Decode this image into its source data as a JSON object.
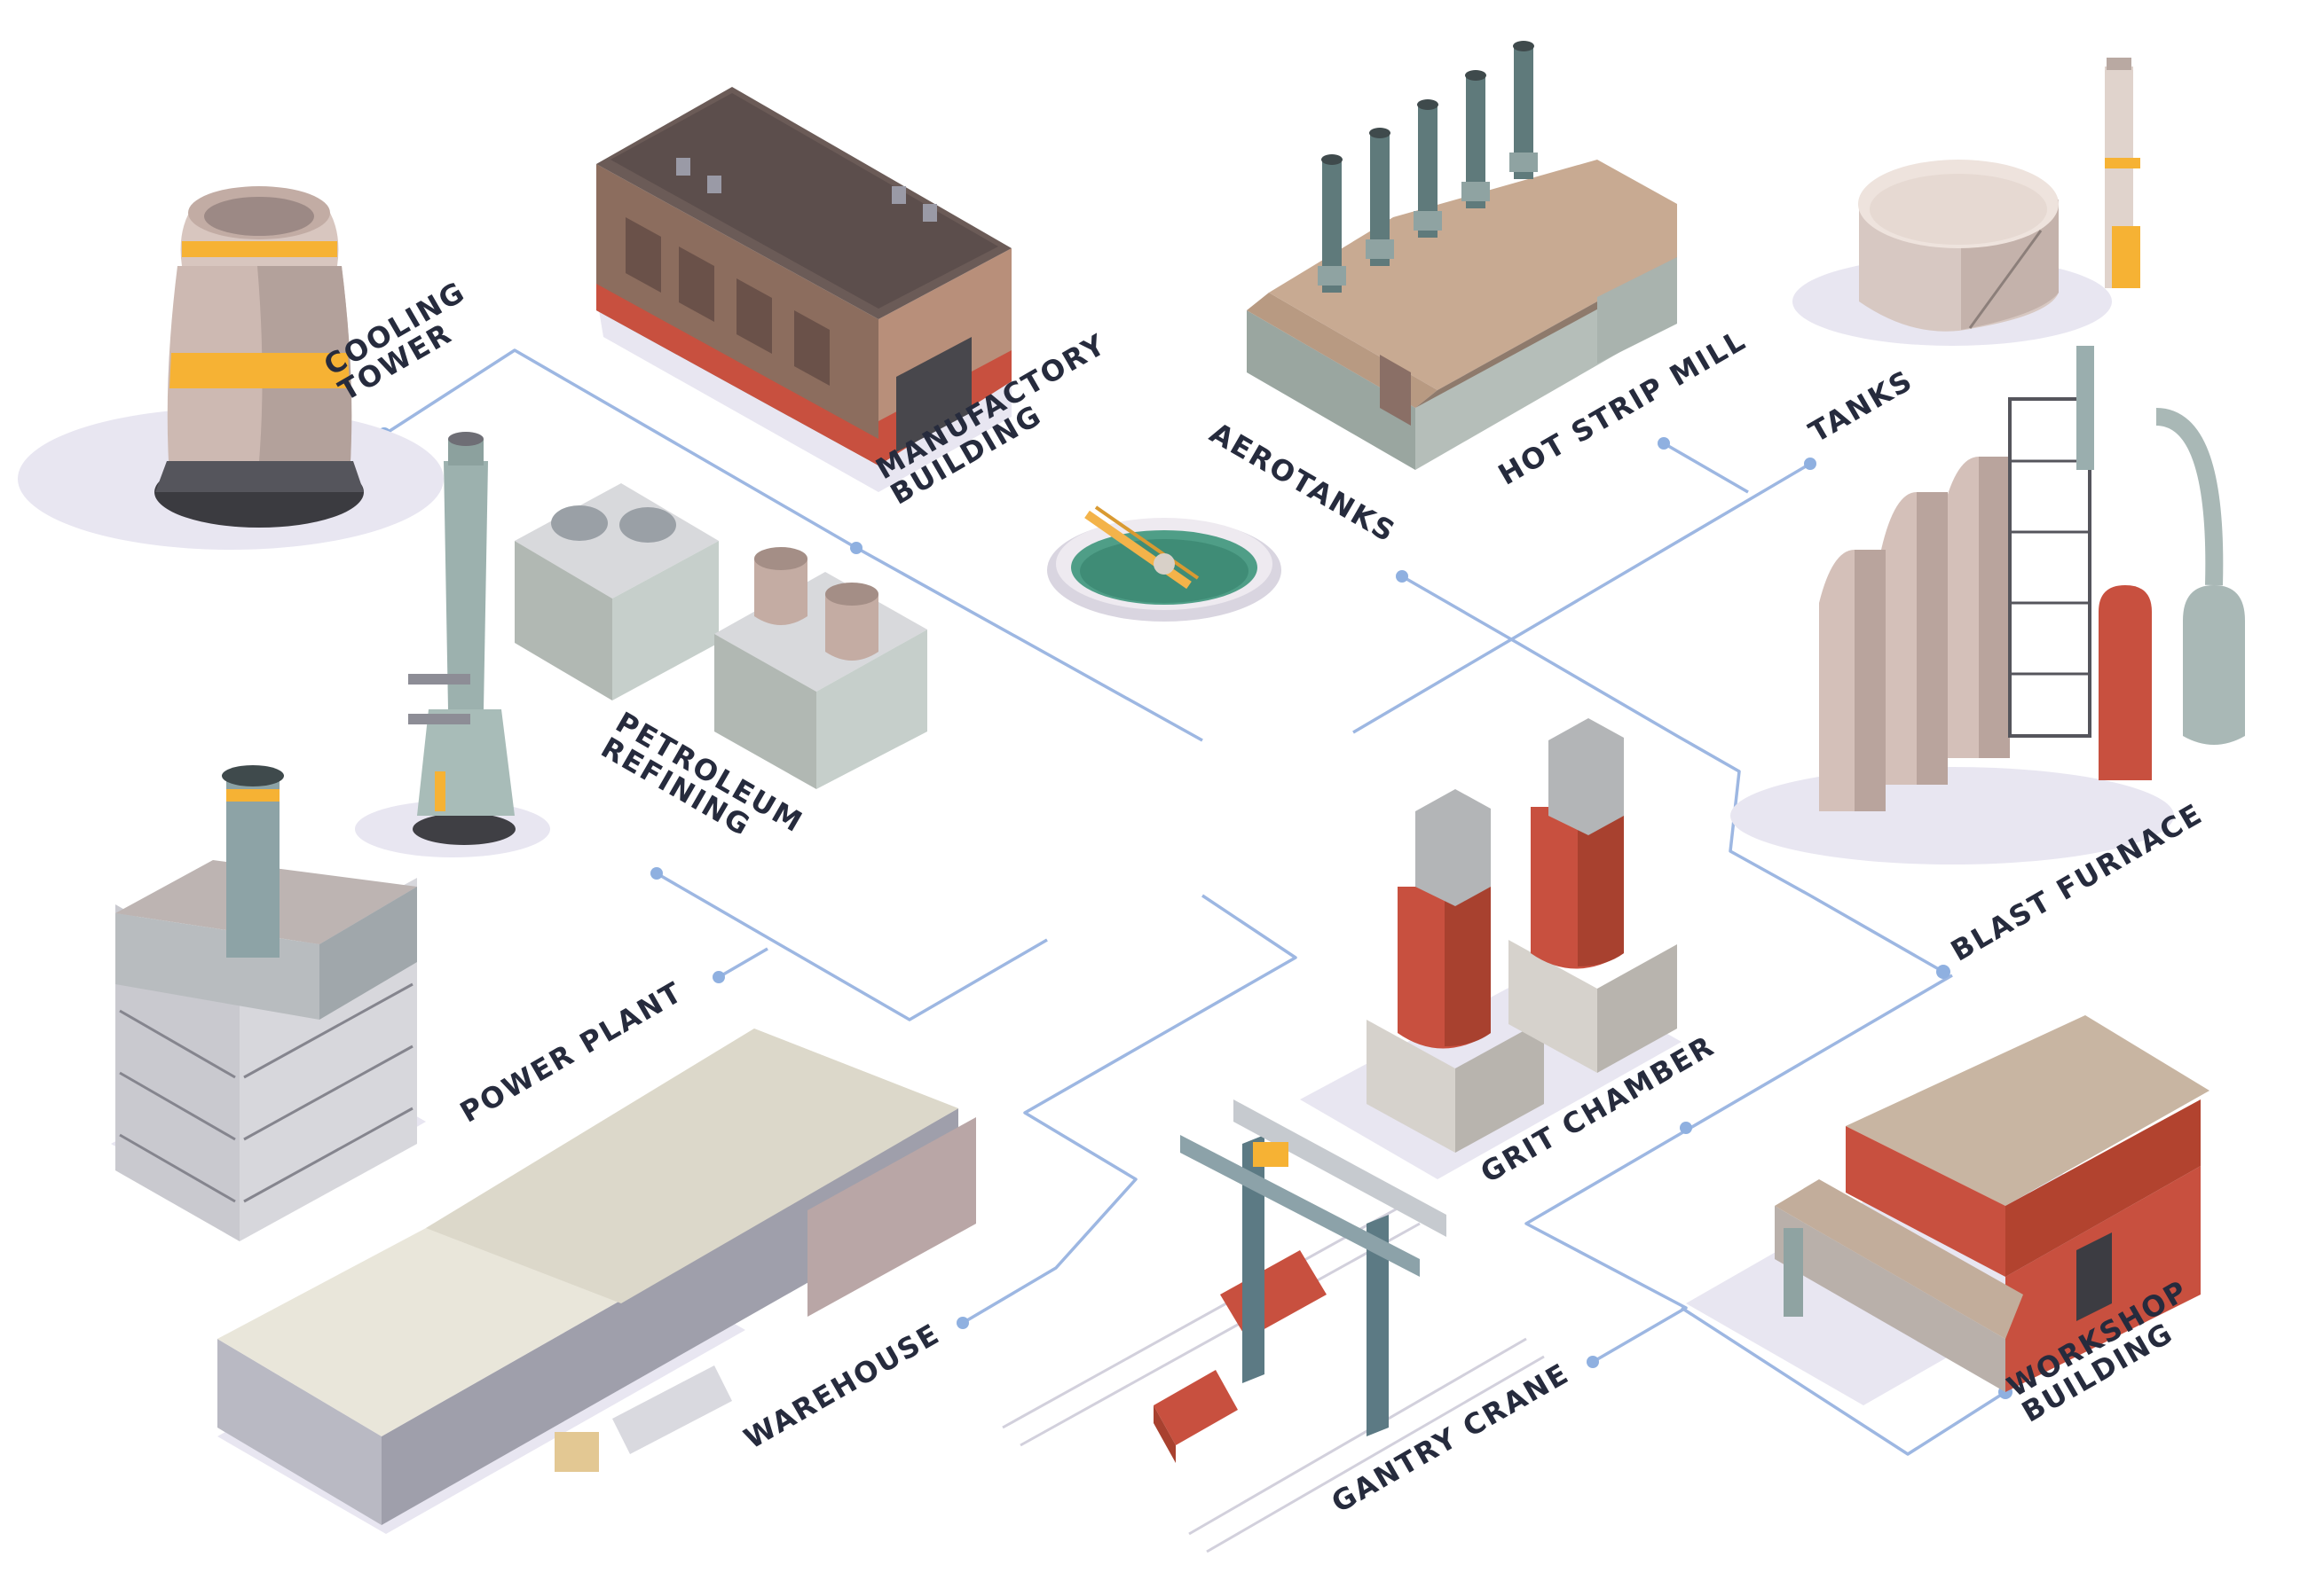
{
  "labels": {
    "cooling_tower": [
      "COOLING",
      "TOWER"
    ],
    "manufactory_building": [
      "MANUFACTORY",
      "BUILDING"
    ],
    "aerotanks": "AEROTANKS",
    "hot_strip_mill": "HOT STRIP MILL",
    "tanks": "TANKS",
    "petroleum_refining": [
      "PETROLEUM",
      "REFINING"
    ],
    "blast_furnace": "BLAST FURNACE",
    "power_plant": "POWER PLANT",
    "grit_chamber": "GRIT CHAMBER",
    "warehouse": "WAREHOUSE",
    "gantry_crane": "GANTRY CRANE",
    "workshop_building": [
      "WORKSHOP",
      "BUILDING"
    ]
  },
  "colors": {
    "connector": "#9db7e2",
    "label_text": "#262b3d",
    "brick_red": "#c8503f",
    "roof_tan": "#c7ad98",
    "shadow": "#e8e6f1"
  }
}
